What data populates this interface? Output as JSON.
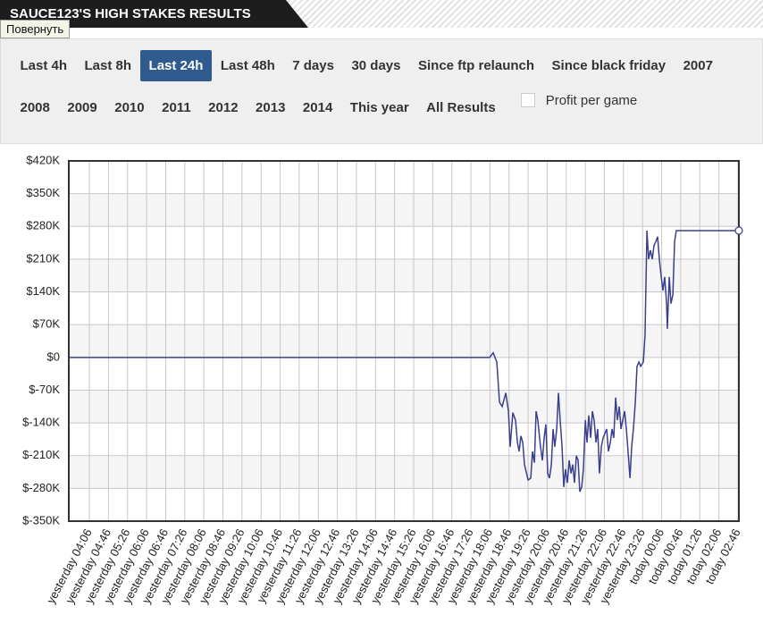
{
  "header": {
    "title": "SAUCE123'S HIGH STAKES RESULTS",
    "tooltip": "Повернуть"
  },
  "filters": {
    "rows": [
      [
        {
          "label": "Last 4h",
          "selected": false
        },
        {
          "label": "Last 8h",
          "selected": false
        },
        {
          "label": "Last 24h",
          "selected": true
        },
        {
          "label": "Last 48h",
          "selected": false
        },
        {
          "label": "7 days",
          "selected": false
        },
        {
          "label": "30 days",
          "selected": false
        },
        {
          "label": "Since ftp relaunch",
          "selected": false
        },
        {
          "label": "Since black friday",
          "selected": false
        },
        {
          "label": "2007",
          "selected": false
        }
      ],
      [
        {
          "label": "2008",
          "selected": false
        },
        {
          "label": "2009",
          "selected": false
        },
        {
          "label": "2010",
          "selected": false
        },
        {
          "label": "2011",
          "selected": false
        },
        {
          "label": "2012",
          "selected": false
        },
        {
          "label": "2013",
          "selected": false
        },
        {
          "label": "2014",
          "selected": false
        },
        {
          "label": "This year",
          "selected": false
        },
        {
          "label": "All Results",
          "selected": false
        }
      ]
    ]
  },
  "checkbox": {
    "label": "Profit per game",
    "checked": false
  },
  "chart_data": {
    "type": "line",
    "grid": true,
    "ylim": [
      -350000,
      420000
    ],
    "yticks": [
      {
        "value": -350000,
        "label": "$-350K"
      },
      {
        "value": -280000,
        "label": "$-280K"
      },
      {
        "value": -210000,
        "label": "$-210K"
      },
      {
        "value": -140000,
        "label": "$-140K"
      },
      {
        "value": -70000,
        "label": "$-70K"
      },
      {
        "value": 0,
        "label": "$0"
      },
      {
        "value": 70000,
        "label": "$70K"
      },
      {
        "value": 140000,
        "label": "$140K"
      },
      {
        "value": 210000,
        "label": "$210K"
      },
      {
        "value": 280000,
        "label": "$280K"
      },
      {
        "value": 350000,
        "label": "$350K"
      },
      {
        "value": 420000,
        "label": "$420K"
      }
    ],
    "xlim": [
      -1.08,
      34.05
    ],
    "xticks": [
      {
        "value": 0,
        "label": "yesterday 04:06"
      },
      {
        "value": 1,
        "label": "yesterday 04:46"
      },
      {
        "value": 2,
        "label": "yesterday 05:26"
      },
      {
        "value": 3,
        "label": "yesterday 06:06"
      },
      {
        "value": 4,
        "label": "yesterday 06:46"
      },
      {
        "value": 5,
        "label": "yesterday 07:26"
      },
      {
        "value": 6,
        "label": "yesterday 08:06"
      },
      {
        "value": 7,
        "label": "yesterday 08:46"
      },
      {
        "value": 8,
        "label": "yesterday 09:26"
      },
      {
        "value": 9,
        "label": "yesterday 10:06"
      },
      {
        "value": 10,
        "label": "yesterday 10:46"
      },
      {
        "value": 11,
        "label": "yesterday 11:26"
      },
      {
        "value": 12,
        "label": "yesterday 12:06"
      },
      {
        "value": 13,
        "label": "yesterday 12:46"
      },
      {
        "value": 14,
        "label": "yesterday 13:26"
      },
      {
        "value": 15,
        "label": "yesterday 14:06"
      },
      {
        "value": 16,
        "label": "yesterday 14:46"
      },
      {
        "value": 17,
        "label": "yesterday 15:26"
      },
      {
        "value": 18,
        "label": "yesterday 16:06"
      },
      {
        "value": 19,
        "label": "yesterday 16:46"
      },
      {
        "value": 20,
        "label": "yesterday 17:26"
      },
      {
        "value": 21,
        "label": "yesterday 18:06"
      },
      {
        "value": 22,
        "label": "yesterday 18:46"
      },
      {
        "value": 23,
        "label": "yesterday 19:26"
      },
      {
        "value": 24,
        "label": "yesterday 20:06"
      },
      {
        "value": 25,
        "label": "yesterday 20:46"
      },
      {
        "value": 26,
        "label": "yesterday 21:26"
      },
      {
        "value": 27,
        "label": "yesterday 22:06"
      },
      {
        "value": 28,
        "label": "yesterday 22:46"
      },
      {
        "value": 29,
        "label": "yesterday 23:26"
      },
      {
        "value": 30,
        "label": "today 00:06"
      },
      {
        "value": 31,
        "label": "today 00:46"
      },
      {
        "value": 32,
        "label": "today 01:26"
      },
      {
        "value": 33,
        "label": "today 02:06"
      },
      {
        "value": 34,
        "label": "today 02:46"
      }
    ],
    "series": [
      {
        "color": "#3b3f8c",
        "x": [
          -1.08,
          20.98,
          21.17,
          21.36,
          21.5,
          21.64,
          21.83,
          21.97,
          22.06,
          22.2,
          22.34,
          22.44,
          22.53,
          22.62,
          22.72,
          22.81,
          23.0,
          23.14,
          23.23,
          23.33,
          23.42,
          23.51,
          23.65,
          23.75,
          23.84,
          23.93,
          24.03,
          24.12,
          24.22,
          24.31,
          24.4,
          24.5,
          24.59,
          24.68,
          24.78,
          24.87,
          24.96,
          25.06,
          25.15,
          25.25,
          25.34,
          25.43,
          25.53,
          25.62,
          25.71,
          25.81,
          25.9,
          26.0,
          26.09,
          26.18,
          26.28,
          26.37,
          26.46,
          26.56,
          26.65,
          26.74,
          26.84,
          26.93,
          27.03,
          27.12,
          27.21,
          27.31,
          27.4,
          27.49,
          27.59,
          27.68,
          27.78,
          27.87,
          27.96,
          28.06,
          28.15,
          28.24,
          28.34,
          28.43,
          28.52,
          28.62,
          28.71,
          28.81,
          28.9,
          29.04,
          29.13,
          29.23,
          29.32,
          29.41,
          29.51,
          29.6,
          29.7,
          29.79,
          29.88,
          29.98,
          30.07,
          30.16,
          30.26,
          30.3,
          30.4,
          30.49,
          30.59,
          30.68,
          30.77,
          30.87,
          34.05
        ],
        "values": [
          0,
          0,
          10000,
          -10000,
          -96000,
          -105000,
          -76000,
          -115000,
          -191000,
          -118000,
          -134000,
          -182000,
          -201000,
          -168000,
          -182000,
          -229000,
          -262000,
          -258000,
          -201000,
          -225000,
          -115000,
          -134000,
          -191000,
          -220000,
          -172000,
          -143000,
          -248000,
          -258000,
          -229000,
          -153000,
          -191000,
          -153000,
          -76000,
          -134000,
          -191000,
          -277000,
          -239000,
          -268000,
          -220000,
          -248000,
          -229000,
          -268000,
          -210000,
          -220000,
          -287000,
          -277000,
          -239000,
          -134000,
          -182000,
          -124000,
          -172000,
          -115000,
          -134000,
          -182000,
          -153000,
          -248000,
          -191000,
          -172000,
          -162000,
          -153000,
          -201000,
          -182000,
          -153000,
          -172000,
          -86000,
          -134000,
          -105000,
          -153000,
          -134000,
          -115000,
          -153000,
          -201000,
          -258000,
          -191000,
          -153000,
          -96000,
          -19000,
          -10000,
          -19000,
          -10000,
          48000,
          271000,
          210000,
          229000,
          210000,
          239000,
          248000,
          258000,
          210000,
          172000,
          143000,
          172000,
          115000,
          61000,
          172000,
          115000,
          134000,
          248000,
          271000,
          271000,
          271000
        ]
      }
    ]
  }
}
